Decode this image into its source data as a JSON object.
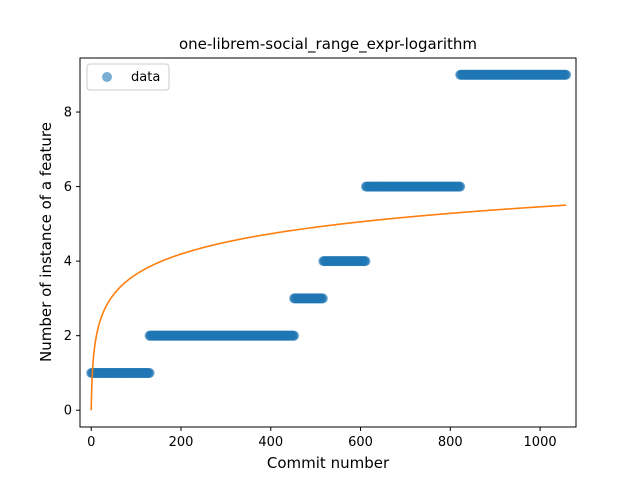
{
  "chart_data": {
    "type": "scatter",
    "title": "one-librem-social_range_expr-logarithm",
    "xlabel": "Commit number",
    "ylabel": "Number of instance of a feature",
    "xlim": [
      -25,
      1080
    ],
    "ylim": [
      -0.45,
      9.45
    ],
    "xticks": [
      0,
      200,
      400,
      600,
      800,
      1000
    ],
    "yticks": [
      0,
      2,
      4,
      6,
      8
    ],
    "legend": {
      "position": "top-left",
      "entries": [
        "data"
      ]
    },
    "colors": {
      "data": "#1f77b4",
      "fit": "#ff7f0e"
    },
    "series": [
      {
        "name": "data",
        "kind": "scatter",
        "segments": [
          {
            "x_start": 0,
            "x_end": 130,
            "y": 1
          },
          {
            "x_start": 130,
            "x_end": 452,
            "y": 2
          },
          {
            "x_start": 452,
            "x_end": 517,
            "y": 3
          },
          {
            "x_start": 517,
            "x_end": 612,
            "y": 4
          },
          {
            "x_start": 612,
            "x_end": 822,
            "y": 6
          },
          {
            "x_start": 822,
            "x_end": 1058,
            "y": 9
          }
        ]
      },
      {
        "kind": "line",
        "model": "y = a * ln(x + 1)",
        "a": 0.79,
        "x_range": [
          0,
          1058
        ]
      }
    ]
  }
}
